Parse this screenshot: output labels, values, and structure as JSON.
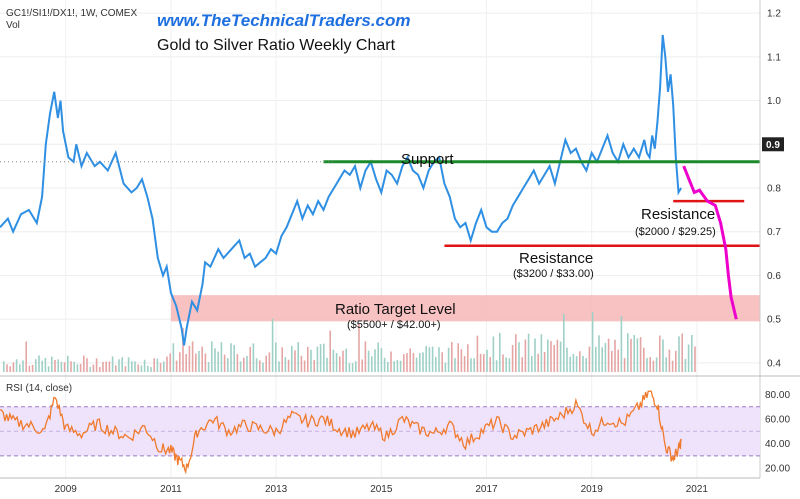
{
  "header": {
    "symbol": "GC1!/SI1!/DX1!, 1W, COMEX",
    "vol_label": "Vol",
    "watermark": "www.TheTechnicalTraders.com",
    "title": "Gold to Silver Ratio Weekly Chart"
  },
  "colors": {
    "price": "#2f8fe3",
    "support": "#1a8a2a",
    "resistance": "#e01414",
    "projection": "#ee00cc",
    "target_zone": "#f7b7b7",
    "rsi": "#f07a2c",
    "rsi_band": "#efe2fb",
    "watermark": "#1e6fe0"
  },
  "price_axis": {
    "ticks": [
      "0.4",
      "0.5",
      "0.6",
      "0.7",
      "0.8",
      "0.9",
      "1.0",
      "1.1",
      "1.2"
    ],
    "current_value": "0.9",
    "dotted_level": 0.86
  },
  "rsi_panel": {
    "label": "RSI (14, close)",
    "ticks": [
      "20.00",
      "40.00",
      "60.00",
      "80.00"
    ],
    "band": [
      30,
      70
    ]
  },
  "x_axis": {
    "labels": [
      "2009",
      "2011",
      "2013",
      "2015",
      "2017",
      "2019",
      "2021"
    ],
    "years": [
      2009,
      2011,
      2013,
      2015,
      2017,
      2019,
      2021
    ]
  },
  "annotations": {
    "support": {
      "label": "Support",
      "level": 0.86
    },
    "resistance_1": {
      "label": "Resistance",
      "sub": "($2000 / $29.25)",
      "level": 0.77
    },
    "resistance_2": {
      "label": "Resistance",
      "sub": "($3200 / $33.00)",
      "level": 0.668
    },
    "target": {
      "label": "Ratio Target Level",
      "sub": "($5500+ / $42.00+)",
      "range": [
        0.495,
        0.555
      ]
    }
  },
  "chart_data": {
    "type": "line",
    "title": "Gold to Silver Ratio Weekly Chart",
    "xlim": [
      2007.75,
      2022.2
    ],
    "ylim": [
      0.37,
      1.23
    ],
    "series": [],
    "price": {
      "x": [
        2007.75,
        2007.9,
        2008.0,
        2008.15,
        2008.3,
        2008.45,
        2008.55,
        2008.62,
        2008.7,
        2008.78,
        2008.85,
        2008.9,
        2008.95,
        2009.05,
        2009.15,
        2009.2,
        2009.3,
        2009.4,
        2009.55,
        2009.65,
        2009.8,
        2009.95,
        2010.1,
        2010.25,
        2010.35,
        2010.45,
        2010.55,
        2010.65,
        2010.75,
        2010.85,
        2010.92,
        2011.0,
        2011.1,
        2011.2,
        2011.25,
        2011.3,
        2011.35,
        2011.4,
        2011.5,
        2011.6,
        2011.65,
        2011.75,
        2011.9,
        2012.0,
        2012.15,
        2012.3,
        2012.4,
        2012.5,
        2012.6,
        2012.7,
        2012.8,
        2012.9,
        2013.0,
        2013.1,
        2013.2,
        2013.3,
        2013.4,
        2013.5,
        2013.6,
        2013.7,
        2013.8,
        2013.9,
        2014.0,
        2014.1,
        2014.2,
        2014.3,
        2014.4,
        2014.5,
        2014.6,
        2014.7,
        2014.8,
        2014.9,
        2015.0,
        2015.1,
        2015.2,
        2015.3,
        2015.4,
        2015.5,
        2015.6,
        2015.7,
        2015.8,
        2015.9,
        2016.0,
        2016.1,
        2016.2,
        2016.3,
        2016.4,
        2016.5,
        2016.6,
        2016.7,
        2016.8,
        2016.9,
        2017.0,
        2017.1,
        2017.2,
        2017.3,
        2017.4,
        2017.5,
        2017.6,
        2017.7,
        2017.8,
        2017.9,
        2018.0,
        2018.1,
        2018.2,
        2018.3,
        2018.4,
        2018.5,
        2018.6,
        2018.7,
        2018.8,
        2018.9,
        2019.0,
        2019.1,
        2019.2,
        2019.3,
        2019.4,
        2019.5,
        2019.6,
        2019.7,
        2019.8,
        2019.9,
        2020.0,
        2020.05,
        2020.1,
        2020.15,
        2020.2,
        2020.25,
        2020.3,
        2020.35,
        2020.4,
        2020.45,
        2020.5,
        2020.55,
        2020.6,
        2020.65,
        2020.7
      ],
      "y": [
        0.71,
        0.73,
        0.7,
        0.74,
        0.75,
        0.72,
        0.78,
        0.9,
        0.97,
        1.02,
        0.96,
        1.0,
        0.93,
        0.87,
        0.86,
        0.9,
        0.85,
        0.88,
        0.85,
        0.86,
        0.84,
        0.88,
        0.81,
        0.79,
        0.8,
        0.82,
        0.78,
        0.73,
        0.64,
        0.6,
        0.62,
        0.56,
        0.53,
        0.48,
        0.44,
        0.48,
        0.51,
        0.54,
        0.52,
        0.58,
        0.63,
        0.62,
        0.66,
        0.64,
        0.66,
        0.68,
        0.64,
        0.65,
        0.62,
        0.63,
        0.64,
        0.66,
        0.65,
        0.69,
        0.71,
        0.74,
        0.77,
        0.73,
        0.76,
        0.74,
        0.77,
        0.75,
        0.78,
        0.8,
        0.82,
        0.84,
        0.83,
        0.85,
        0.8,
        0.84,
        0.86,
        0.82,
        0.79,
        0.84,
        0.83,
        0.81,
        0.85,
        0.87,
        0.84,
        0.83,
        0.8,
        0.84,
        0.86,
        0.87,
        0.81,
        0.78,
        0.73,
        0.71,
        0.72,
        0.68,
        0.72,
        0.75,
        0.71,
        0.7,
        0.7,
        0.72,
        0.73,
        0.76,
        0.78,
        0.8,
        0.82,
        0.84,
        0.81,
        0.83,
        0.85,
        0.81,
        0.86,
        0.91,
        0.88,
        0.89,
        0.86,
        0.84,
        0.88,
        0.86,
        0.89,
        0.92,
        0.88,
        0.86,
        0.9,
        0.87,
        0.89,
        0.87,
        0.91,
        0.88,
        0.87,
        0.92,
        0.89,
        0.95,
        1.03,
        1.15,
        1.1,
        1.02,
        1.06,
        0.99,
        0.87,
        0.79,
        0.8
      ]
    },
    "projection": {
      "x": [
        2020.75,
        2020.85,
        2020.95,
        2021.05,
        2021.2,
        2021.35,
        2021.45,
        2021.55,
        2021.6,
        2021.65,
        2021.75
      ],
      "y": [
        0.85,
        0.82,
        0.79,
        0.795,
        0.77,
        0.76,
        0.72,
        0.66,
        0.6,
        0.55,
        0.5
      ]
    },
    "rsi": {
      "x": [
        2007.75,
        2008.0,
        2008.3,
        2008.6,
        2008.8,
        2009.0,
        2009.3,
        2009.6,
        2009.9,
        2010.2,
        2010.5,
        2010.8,
        2011.0,
        2011.15,
        2011.3,
        2011.5,
        2011.8,
        2012.1,
        2012.4,
        2012.7,
        2013.0,
        2013.3,
        2013.6,
        2013.9,
        2014.2,
        2014.5,
        2014.8,
        2015.1,
        2015.4,
        2015.7,
        2016.0,
        2016.3,
        2016.6,
        2016.9,
        2017.2,
        2017.5,
        2017.8,
        2018.1,
        2018.4,
        2018.7,
        2019.0,
        2019.3,
        2019.6,
        2019.9,
        2020.1,
        2020.25,
        2020.4,
        2020.55,
        2020.65,
        2020.7
      ],
      "y": [
        65,
        58,
        55,
        50,
        78,
        52,
        48,
        56,
        50,
        45,
        54,
        36,
        34,
        26,
        20,
        50,
        60,
        50,
        55,
        52,
        50,
        62,
        58,
        60,
        52,
        48,
        54,
        46,
        60,
        52,
        48,
        55,
        40,
        50,
        58,
        46,
        50,
        55,
        62,
        72,
        50,
        60,
        56,
        70,
        82,
        72,
        38,
        28,
        35,
        42
      ]
    }
  }
}
